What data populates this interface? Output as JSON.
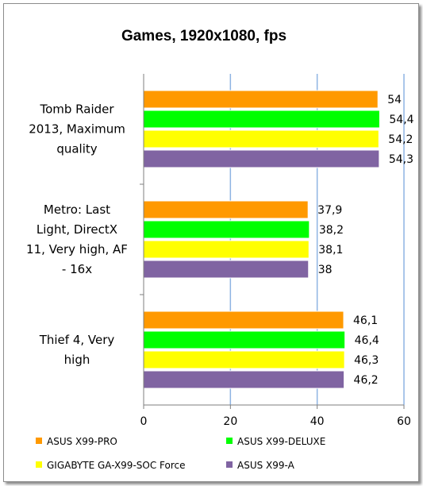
{
  "chart_data": {
    "type": "bar",
    "orientation": "horizontal",
    "title": "Games, 1920x1080, fps",
    "categories": [
      "Tomb Raider 2013, Maximum quality",
      "Metro: Last Light, DirectX 11, Very high, AF - 16x",
      "Thief 4, Very high"
    ],
    "category_lines": [
      [
        "Tomb Raider",
        "2013, Maximum",
        "quality"
      ],
      [
        "Metro: Last",
        "Light, DirectX",
        "11, Very high, AF",
        "- 16x"
      ],
      [
        "Thief 4, Very",
        "high"
      ]
    ],
    "series": [
      {
        "name": "ASUS X99-PRO",
        "color": "#ff9900",
        "values": [
          54,
          37.9,
          46.1
        ],
        "labels": [
          "54",
          "37,9",
          "46,1"
        ]
      },
      {
        "name": "ASUS X99-DELUXE",
        "color": "#00ff00",
        "values": [
          54.4,
          38.2,
          46.4
        ],
        "labels": [
          "54,4",
          "38,2",
          "46,4"
        ]
      },
      {
        "name": "GIGABYTE GA-X99-SOC Force",
        "color": "#ffff00",
        "values": [
          54.2,
          38.1,
          46.3
        ],
        "labels": [
          "54,2",
          "38,1",
          "46,3"
        ]
      },
      {
        "name": "ASUS X99-A",
        "color": "#8064a2",
        "values": [
          54.3,
          38,
          46.2
        ],
        "labels": [
          "54,3",
          "38",
          "46,2"
        ]
      }
    ],
    "xlim": [
      0,
      60
    ],
    "xticks": [
      0,
      20,
      40,
      60
    ],
    "xtick_labels": [
      "0",
      "20",
      "40",
      "60"
    ],
    "grid": "vertical",
    "grid_color": "#8eb4e3",
    "legend_position": "bottom"
  }
}
